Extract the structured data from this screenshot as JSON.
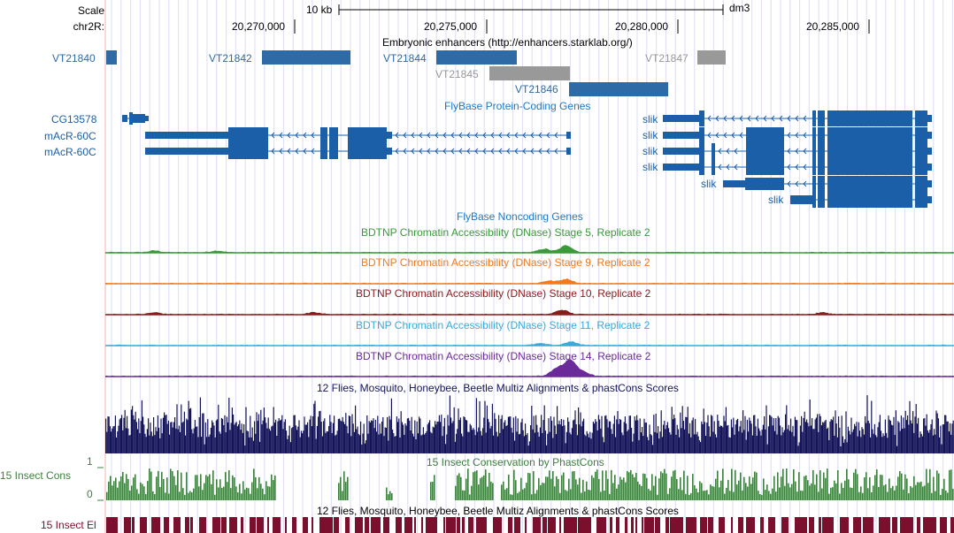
{
  "scale": {
    "label": "Scale",
    "bar_label": "10 kb",
    "assembly": "dm3"
  },
  "position": {
    "chrom_label": "chr2R:",
    "ticks": [
      {
        "label": "20,270,000",
        "pos": 20270000
      },
      {
        "label": "20,275,000",
        "pos": 20275000
      },
      {
        "label": "20,280,000",
        "pos": 20280000
      },
      {
        "label": "20,285,000",
        "pos": 20285000
      }
    ]
  },
  "enhancers": {
    "title": "Embryonic enhancers (http://enhancers.starklab.org/)",
    "items": [
      {
        "name": "VT21840",
        "color": "#2e6aa6"
      },
      {
        "name": "VT21842",
        "color": "#2e6aa6"
      },
      {
        "name": "VT21844",
        "color": "#2e6aa6"
      },
      {
        "name": "VT21845",
        "color": "#999999"
      },
      {
        "name": "VT21846",
        "color": "#2e6aa6"
      },
      {
        "name": "VT21847",
        "color": "#999999"
      }
    ]
  },
  "protein_genes": {
    "title": "FlyBase Protein-Coding Genes",
    "color": "#1a5fa8",
    "left_genes": [
      "CG13578",
      "mAcR-60C",
      "mAcR-60C"
    ],
    "right_genes": [
      "slik",
      "slik",
      "slik",
      "slik",
      "slik",
      "slik"
    ]
  },
  "noncoding": {
    "title": "FlyBase Noncoding Genes"
  },
  "dnase_tracks": [
    {
      "title": "BDTNP Chromatin Accessibility (DNase) Stage 5, Replicate 2",
      "color": "#3a9a3a"
    },
    {
      "title": "BDTNP Chromatin Accessibility (DNase) Stage 9, Replicate 2",
      "color": "#f07a1e"
    },
    {
      "title": "BDTNP Chromatin Accessibility (DNase) Stage 10, Replicate 2",
      "color": "#8b1a1a"
    },
    {
      "title": "BDTNP Chromatin Accessibility (DNase) Stage 11, Replicate 2",
      "color": "#3aaad8"
    },
    {
      "title": "BDTNP Chromatin Accessibility (DNase) Stage 14, Replicate 2",
      "color": "#6a2a9a"
    }
  ],
  "multiz": {
    "title": "12 Flies, Mosquito, Honeybee, Beetle Multiz Alignments & phastCons Scores",
    "color": "#14145a"
  },
  "conservation": {
    "title": "15 Insect Conservation by PhastCons",
    "label": "15 Insect Cons",
    "y_max": "1",
    "y_min": "0",
    "color": "#3f7f3f"
  },
  "elements": {
    "title": "12 Flies, Mosquito, Honeybee, Beetle Multiz Alignments & phastCons Scores",
    "label": "15 Insect El",
    "color": "#7a0f2e"
  }
}
